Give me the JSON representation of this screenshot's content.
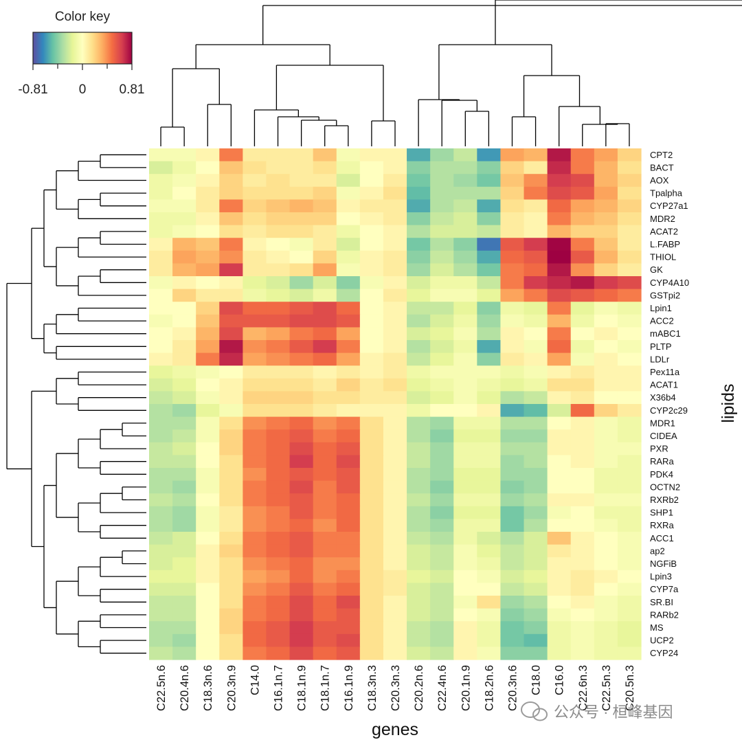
{
  "chart_data": {
    "type": "heatmap",
    "xlabel": "genes",
    "ylabel": "lipids",
    "color_key": {
      "title": "Color key",
      "ticks": [
        "-0.81",
        "0",
        "0.81"
      ],
      "range": [
        -0.81,
        0.81
      ],
      "palette": [
        "#5e4fa2",
        "#3288bd",
        "#66c2a5",
        "#abdda4",
        "#e6f598",
        "#ffffbf",
        "#fee08b",
        "#fdae61",
        "#f46d43",
        "#d53e4f",
        "#9e0142"
      ]
    },
    "columns": [
      "C22.5n.6",
      "C20.4n.6",
      "C18.3n.6",
      "C20.3n.9",
      "C14.0",
      "C16.1n.7",
      "C18.1n.9",
      "C18.1n.7",
      "C16.1n.9",
      "C18.3n.3",
      "C20.3n.3",
      "C20.2n.6",
      "C22.4n.6",
      "C20.1n.9",
      "C18.2n.6",
      "C20.3n.6",
      "C18.0",
      "C16.0",
      "C22.6n.3",
      "C22.5n.3",
      "C20.5n.3"
    ],
    "rows": [
      "CPT2",
      "BACT",
      "AOX",
      "Tpalpha",
      "CYP27a1",
      "MDR2",
      "ACAT2",
      "L.FABP",
      "THIOL",
      "GK",
      "CYP4A10",
      "GSTpi2",
      "Lpin1",
      "ACC2",
      "mABC1",
      "PLTP",
      "LDLr",
      "Pex11a",
      "ACAT1",
      "X36b4",
      "CYP2c29",
      "MDR1",
      "CIDEA",
      "PXR",
      "RARa",
      "PDK4",
      "OCTN2",
      "RXRb2",
      "SHP1",
      "RXRa",
      "ACC1",
      "ap2",
      "NGFiB",
      "Lpin3",
      "CYP7a",
      "SR.BI",
      "RARb2",
      "MS",
      "UCP2",
      "CYP24"
    ],
    "values": [
      [
        -0.05,
        -0.05,
        0.05,
        0.45,
        0.1,
        0.1,
        0.1,
        0.25,
        -0.05,
        0.05,
        0.05,
        -0.55,
        -0.35,
        -0.25,
        -0.6,
        0.35,
        0.3,
        0.75,
        0.45,
        0.35,
        0.2
      ],
      [
        -0.2,
        -0.1,
        0.0,
        0.25,
        0.15,
        0.1,
        0.1,
        0.15,
        -0.1,
        0.0,
        0.05,
        -0.4,
        -0.3,
        -0.3,
        -0.4,
        0.2,
        0.1,
        0.7,
        0.45,
        0.3,
        0.15
      ],
      [
        -0.1,
        -0.05,
        0.05,
        0.2,
        0.1,
        0.15,
        0.1,
        0.1,
        -0.2,
        0.0,
        0.1,
        -0.45,
        -0.3,
        -0.35,
        -0.45,
        0.25,
        0.4,
        0.65,
        0.6,
        0.3,
        0.2
      ],
      [
        -0.1,
        0.0,
        0.1,
        0.2,
        0.15,
        0.15,
        0.15,
        0.2,
        -0.05,
        0.05,
        0.15,
        -0.5,
        -0.3,
        -0.3,
        -0.3,
        0.2,
        0.45,
        0.6,
        0.55,
        0.35,
        0.15
      ],
      [
        -0.05,
        -0.05,
        0.1,
        0.45,
        0.2,
        0.25,
        0.3,
        0.25,
        0.05,
        0.1,
        0.1,
        -0.55,
        -0.3,
        -0.25,
        -0.55,
        0.15,
        0.1,
        0.5,
        0.35,
        0.3,
        0.2
      ],
      [
        -0.1,
        -0.1,
        0.05,
        0.25,
        0.15,
        0.2,
        0.2,
        0.2,
        0.0,
        0.05,
        0.1,
        -0.4,
        -0.25,
        -0.2,
        -0.4,
        0.1,
        0.05,
        0.45,
        0.3,
        0.25,
        0.15
      ],
      [
        -0.1,
        -0.05,
        0.0,
        0.15,
        0.1,
        0.15,
        0.15,
        0.1,
        -0.1,
        0.0,
        0.05,
        -0.3,
        -0.2,
        -0.2,
        -0.25,
        0.1,
        0.05,
        0.3,
        0.2,
        0.2,
        0.1
      ],
      [
        0.05,
        0.3,
        0.25,
        0.45,
        0.05,
        0.0,
        -0.05,
        0.1,
        -0.2,
        0.0,
        0.05,
        -0.45,
        -0.3,
        -0.4,
        -0.7,
        0.55,
        0.65,
        0.8,
        0.45,
        0.25,
        0.1
      ],
      [
        0.1,
        0.35,
        0.3,
        0.4,
        0.1,
        0.05,
        0.0,
        0.2,
        -0.1,
        0.05,
        0.1,
        -0.4,
        -0.25,
        -0.35,
        -0.55,
        0.5,
        0.55,
        0.81,
        0.55,
        0.3,
        0.15
      ],
      [
        0.1,
        0.3,
        0.35,
        0.65,
        0.1,
        0.1,
        0.15,
        0.35,
        -0.05,
        0.05,
        0.1,
        -0.35,
        -0.2,
        -0.3,
        -0.45,
        0.45,
        0.5,
        0.75,
        0.4,
        0.2,
        0.1
      ],
      [
        -0.05,
        0.05,
        0.0,
        0.05,
        -0.15,
        -0.2,
        -0.35,
        -0.2,
        -0.4,
        -0.05,
        0.05,
        -0.2,
        -0.1,
        -0.1,
        -0.25,
        0.45,
        0.65,
        0.7,
        0.75,
        0.65,
        0.6
      ],
      [
        0.0,
        0.2,
        0.1,
        0.1,
        -0.1,
        -0.15,
        -0.2,
        -0.1,
        -0.3,
        0.0,
        0.1,
        -0.15,
        -0.05,
        -0.05,
        -0.15,
        0.35,
        0.45,
        0.6,
        0.55,
        0.5,
        0.45
      ],
      [
        0.0,
        0.0,
        0.2,
        0.6,
        0.5,
        0.5,
        0.55,
        0.6,
        0.5,
        0.0,
        0.05,
        -0.25,
        -0.25,
        -0.15,
        -0.4,
        -0.1,
        -0.15,
        0.45,
        -0.15,
        -0.05,
        -0.1
      ],
      [
        -0.05,
        0.0,
        0.25,
        0.55,
        0.55,
        0.55,
        0.6,
        0.6,
        0.55,
        0.0,
        0.05,
        -0.3,
        -0.2,
        -0.1,
        -0.35,
        -0.05,
        -0.1,
        0.3,
        -0.1,
        0.0,
        -0.05
      ],
      [
        0.0,
        0.05,
        0.3,
        0.6,
        0.3,
        0.35,
        0.45,
        0.5,
        0.35,
        0.0,
        0.05,
        -0.2,
        -0.15,
        -0.05,
        -0.3,
        0.05,
        0.0,
        0.45,
        0.0,
        0.05,
        0.0
      ],
      [
        0.0,
        0.1,
        0.35,
        0.75,
        0.4,
        0.45,
        0.55,
        0.65,
        0.45,
        0.0,
        0.05,
        -0.3,
        -0.2,
        -0.1,
        -0.55,
        0.05,
        -0.05,
        0.5,
        -0.1,
        0.0,
        -0.05
      ],
      [
        0.05,
        0.1,
        0.45,
        0.7,
        0.35,
        0.4,
        0.45,
        0.5,
        0.35,
        0.05,
        0.1,
        -0.25,
        -0.15,
        -0.05,
        -0.4,
        0.1,
        0.05,
        0.35,
        -0.05,
        0.05,
        0.0
      ],
      [
        -0.15,
        -0.1,
        -0.05,
        0.0,
        0.1,
        0.1,
        0.1,
        0.05,
        0.1,
        0.05,
        0.1,
        -0.1,
        -0.05,
        -0.05,
        -0.05,
        -0.1,
        -0.05,
        0.05,
        0.1,
        0.05,
        0.05
      ],
      [
        -0.2,
        -0.15,
        0.0,
        0.05,
        0.15,
        0.15,
        0.15,
        0.1,
        0.2,
        0.1,
        0.15,
        -0.15,
        -0.1,
        -0.05,
        -0.1,
        -0.15,
        -0.1,
        0.15,
        0.15,
        0.05,
        0.05
      ],
      [
        -0.25,
        -0.2,
        -0.05,
        0.05,
        0.2,
        0.2,
        0.2,
        0.15,
        0.15,
        0.1,
        0.1,
        -0.2,
        -0.15,
        -0.05,
        -0.15,
        -0.3,
        -0.25,
        0.05,
        0.1,
        0.0,
        0.0
      ],
      [
        -0.3,
        -0.35,
        -0.15,
        -0.05,
        0.15,
        0.15,
        0.15,
        0.1,
        0.05,
        0.05,
        0.05,
        -0.1,
        0.0,
        0.0,
        0.05,
        -0.55,
        -0.5,
        -0.2,
        0.5,
        0.2,
        0.1
      ],
      [
        -0.3,
        -0.3,
        -0.05,
        0.15,
        0.4,
        0.45,
        0.5,
        0.4,
        0.45,
        0.15,
        0.05,
        -0.3,
        -0.35,
        -0.1,
        -0.1,
        -0.3,
        -0.3,
        0.0,
        0.05,
        -0.05,
        -0.1
      ],
      [
        -0.3,
        -0.25,
        -0.05,
        0.2,
        0.45,
        0.5,
        0.55,
        0.45,
        0.5,
        0.15,
        0.05,
        -0.3,
        -0.4,
        -0.15,
        -0.15,
        -0.35,
        -0.35,
        0.05,
        0.05,
        -0.05,
        -0.1
      ],
      [
        -0.25,
        -0.2,
        0.0,
        0.2,
        0.45,
        0.5,
        0.6,
        0.5,
        0.55,
        0.15,
        0.05,
        -0.25,
        -0.35,
        -0.1,
        -0.1,
        -0.3,
        -0.3,
        0.05,
        0.05,
        -0.05,
        -0.05
      ],
      [
        -0.25,
        -0.25,
        0.0,
        0.15,
        0.45,
        0.5,
        0.65,
        0.5,
        0.6,
        0.15,
        0.05,
        -0.25,
        -0.35,
        -0.1,
        -0.1,
        -0.35,
        -0.3,
        0.0,
        0.05,
        -0.05,
        -0.1
      ],
      [
        -0.3,
        -0.3,
        -0.05,
        0.15,
        0.4,
        0.5,
        0.55,
        0.5,
        0.55,
        0.15,
        0.05,
        -0.3,
        -0.35,
        -0.15,
        -0.15,
        -0.35,
        -0.35,
        0.0,
        0.0,
        -0.1,
        -0.1
      ],
      [
        -0.3,
        -0.35,
        -0.05,
        0.15,
        0.45,
        0.5,
        0.6,
        0.45,
        0.55,
        0.15,
        0.05,
        -0.3,
        -0.4,
        -0.15,
        -0.15,
        -0.4,
        -0.35,
        0.0,
        0.0,
        -0.1,
        -0.1
      ],
      [
        -0.25,
        -0.3,
        0.0,
        0.15,
        0.45,
        0.5,
        0.55,
        0.45,
        0.5,
        0.15,
        0.05,
        -0.25,
        -0.35,
        -0.1,
        -0.1,
        -0.35,
        -0.3,
        0.05,
        0.05,
        -0.05,
        -0.05
      ],
      [
        -0.3,
        -0.35,
        -0.05,
        0.1,
        0.4,
        0.45,
        0.55,
        0.45,
        0.5,
        0.15,
        0.05,
        -0.3,
        -0.4,
        -0.15,
        -0.15,
        -0.45,
        -0.35,
        -0.05,
        0.0,
        -0.1,
        -0.1
      ],
      [
        -0.3,
        -0.35,
        -0.05,
        0.1,
        0.4,
        0.45,
        0.5,
        0.4,
        0.5,
        0.15,
        0.05,
        -0.3,
        -0.35,
        -0.1,
        -0.1,
        -0.45,
        -0.3,
        0.0,
        0.0,
        -0.05,
        -0.1
      ],
      [
        -0.25,
        -0.2,
        0.0,
        0.15,
        0.45,
        0.5,
        0.55,
        0.45,
        0.45,
        0.15,
        0.05,
        -0.25,
        -0.3,
        -0.1,
        -0.2,
        -0.3,
        -0.2,
        0.25,
        0.05,
        0.0,
        -0.05
      ],
      [
        -0.2,
        -0.2,
        0.05,
        0.2,
        0.45,
        0.5,
        0.55,
        0.45,
        0.45,
        0.15,
        0.05,
        -0.2,
        -0.25,
        -0.05,
        -0.15,
        -0.25,
        -0.2,
        0.1,
        0.05,
        0.0,
        -0.05
      ],
      [
        -0.2,
        -0.15,
        0.05,
        0.15,
        0.4,
        0.45,
        0.5,
        0.4,
        0.4,
        0.15,
        0.05,
        -0.2,
        -0.25,
        -0.05,
        -0.1,
        -0.25,
        -0.2,
        0.05,
        0.05,
        0.0,
        -0.05
      ],
      [
        -0.15,
        -0.15,
        0.05,
        0.15,
        0.35,
        0.4,
        0.5,
        0.4,
        0.45,
        0.15,
        0.1,
        -0.15,
        -0.2,
        0.0,
        -0.05,
        -0.2,
        -0.15,
        0.05,
        0.1,
        0.05,
        0.0
      ],
      [
        -0.2,
        -0.2,
        0.0,
        0.15,
        0.4,
        0.45,
        0.55,
        0.45,
        0.5,
        0.15,
        0.1,
        -0.2,
        -0.25,
        0.0,
        0.0,
        -0.25,
        -0.2,
        0.05,
        0.1,
        0.0,
        -0.05
      ],
      [
        -0.25,
        -0.25,
        0.0,
        0.15,
        0.45,
        0.5,
        0.6,
        0.5,
        0.6,
        0.15,
        0.05,
        -0.2,
        -0.25,
        -0.05,
        0.15,
        -0.35,
        -0.3,
        0.0,
        0.05,
        -0.05,
        -0.1
      ],
      [
        -0.25,
        -0.25,
        0.0,
        0.2,
        0.45,
        0.5,
        0.6,
        0.5,
        0.55,
        0.15,
        0.05,
        -0.2,
        -0.25,
        0.0,
        -0.05,
        -0.4,
        -0.35,
        -0.05,
        0.0,
        -0.05,
        -0.1
      ],
      [
        -0.3,
        -0.3,
        0.0,
        0.2,
        0.5,
        0.55,
        0.65,
        0.55,
        0.55,
        0.15,
        0.05,
        -0.25,
        -0.3,
        0.05,
        -0.1,
        -0.45,
        -0.4,
        -0.1,
        -0.05,
        -0.1,
        -0.15
      ],
      [
        -0.3,
        -0.35,
        0.0,
        0.15,
        0.5,
        0.55,
        0.65,
        0.55,
        0.6,
        0.15,
        0.05,
        -0.25,
        -0.3,
        0.05,
        -0.1,
        -0.45,
        -0.5,
        -0.1,
        -0.05,
        -0.1,
        -0.15
      ],
      [
        -0.25,
        -0.3,
        0.0,
        0.15,
        0.45,
        0.5,
        0.6,
        0.5,
        0.55,
        0.15,
        0.05,
        -0.2,
        -0.25,
        0.05,
        -0.05,
        -0.4,
        -0.4,
        -0.1,
        -0.05,
        -0.1,
        -0.1
      ]
    ]
  },
  "watermark": "公众号 · 桓峰基因"
}
